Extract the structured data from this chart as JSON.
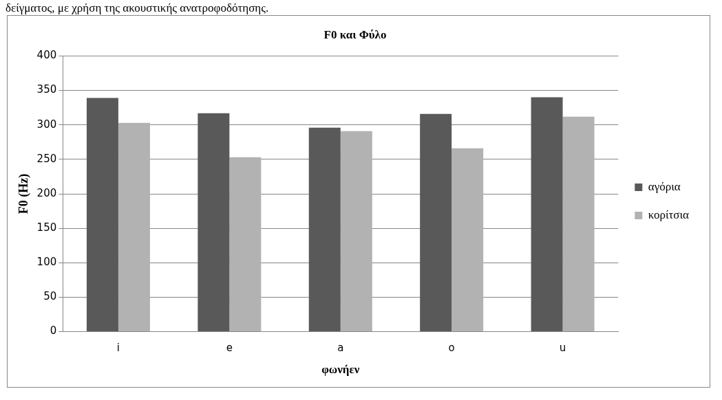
{
  "chart_data": {
    "type": "bar",
    "title": "F0 και Φύλο",
    "xlabel": "φωνήεν",
    "ylabel": "F0 (Hz)",
    "annotations": [
      "δείγματος, με χρήση της ακουστικής ανατροφοδότησης."
    ],
    "categories": [
      "i",
      "e",
      "a",
      "o",
      "u"
    ],
    "series": [
      {
        "name": "αγόρια",
        "color": "#595959",
        "values": [
          339,
          317,
          296,
          316,
          340
        ]
      },
      {
        "name": "κορίτσια",
        "color": "#b2b2b2",
        "values": [
          303,
          253,
          291,
          266,
          312
        ]
      }
    ],
    "ylim": [
      0,
      400
    ],
    "yticks": [
      0,
      50,
      100,
      150,
      200,
      250,
      300,
      350,
      400
    ],
    "grid": "y",
    "legend": "right"
  }
}
